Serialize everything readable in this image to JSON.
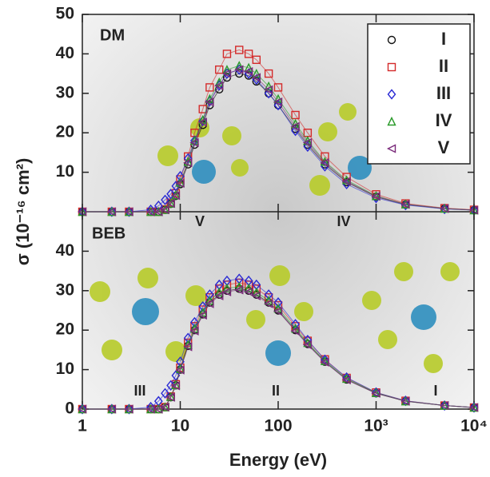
{
  "chart_data": [
    {
      "type": "scatter",
      "title": "DM",
      "ylabel": "σ (10⁻¹⁶ cm²)",
      "log_x": true,
      "legend": "top-right",
      "annotations": [
        "V",
        "IV"
      ],
      "x": [
        1,
        2,
        3,
        5,
        6,
        7,
        8,
        9,
        10,
        12,
        14,
        17,
        20,
        25,
        30,
        40,
        50,
        60,
        80,
        100,
        150,
        200,
        300,
        500,
        1000,
        2000,
        5000,
        10000
      ],
      "xlim": [
        1,
        10000
      ],
      "ylim": [
        0,
        50
      ],
      "yticks": [
        10,
        20,
        30,
        40,
        50
      ],
      "series": [
        {
          "name": "I",
          "color": "#111111",
          "marker": "circle",
          "values": [
            0,
            0,
            0,
            0,
            0,
            0.5,
            2,
            4,
            7,
            12,
            17,
            22,
            27,
            31,
            34,
            35,
            34.5,
            33,
            30,
            27,
            21,
            17,
            12,
            7.5,
            3.8,
            1.8,
            0.8,
            0.4
          ]
        },
        {
          "name": "II",
          "color": "#d42a2a",
          "marker": "square",
          "values": [
            0,
            0,
            0,
            0,
            0,
            0.6,
            2.3,
            4.7,
            8.2,
            14,
            20,
            26,
            31.5,
            36,
            40,
            41,
            40,
            38.5,
            35,
            31.5,
            24.5,
            20,
            14,
            8.8,
            4.4,
            2.1,
            0.9,
            0.5
          ]
        },
        {
          "name": "III",
          "color": "#2a2ad4",
          "marker": "diamond",
          "values": [
            0,
            0,
            0,
            0.5,
            1.5,
            3,
            4.5,
            6.5,
            9,
            13.5,
            18,
            23,
            28,
            32,
            35,
            36,
            35,
            33.5,
            30,
            27,
            20.5,
            16.5,
            11.5,
            7,
            3.5,
            1.7,
            0.7,
            0.4
          ]
        },
        {
          "name": "IV",
          "color": "#2a9a2a",
          "marker": "triangle",
          "values": [
            0,
            0,
            0,
            0,
            0,
            0.5,
            2.1,
            4.2,
            7.4,
            12.7,
            18,
            23.3,
            28.6,
            32.8,
            36,
            37,
            36.5,
            35,
            31.8,
            28.6,
            22.3,
            18,
            12.7,
            8,
            4,
            1.9,
            0.8,
            0.4
          ]
        },
        {
          "name": "V",
          "color": "#7a2a7a",
          "marker": "triangle-left",
          "values": [
            0,
            0,
            0,
            0,
            0,
            0.5,
            2.1,
            4.1,
            7.2,
            12.4,
            17.5,
            22.7,
            27.8,
            31.9,
            35,
            36,
            35.5,
            34,
            30.9,
            27.8,
            21.6,
            17.5,
            12.4,
            7.7,
            3.9,
            1.9,
            0.8,
            0.4
          ]
        }
      ]
    },
    {
      "type": "scatter",
      "title": "BEB",
      "xlabel": "Energy (eV)",
      "log_x": true,
      "annotations": [
        "III",
        "II",
        "I"
      ],
      "x": [
        1,
        2,
        3,
        5,
        6,
        7,
        8,
        9,
        10,
        12,
        14,
        17,
        20,
        25,
        30,
        40,
        50,
        60,
        80,
        100,
        150,
        200,
        300,
        500,
        1000,
        2000,
        5000,
        10000
      ],
      "xlim": [
        1,
        10000
      ],
      "ylim": [
        0,
        50
      ],
      "yticks": [
        0,
        10,
        20,
        30,
        40
      ],
      "xticks": [
        1,
        10,
        100,
        {
          "value": 1000,
          "label": "10³"
        },
        {
          "value": 10000,
          "label": "10⁴"
        }
      ],
      "series": [
        {
          "color": "#111111",
          "marker": "circle",
          "values": [
            0,
            0,
            0,
            0,
            0,
            0.5,
            3,
            6,
            10,
            16,
            20,
            24,
            27,
            29,
            30,
            30.5,
            30,
            29,
            27,
            25,
            20,
            16.5,
            12,
            7.5,
            4,
            2,
            0.9,
            0.4
          ]
        },
        {
          "color": "#d42a2a",
          "marker": "square",
          "values": [
            0,
            0,
            0,
            0,
            0,
            0.5,
            3.2,
            6.3,
            10.5,
            16.8,
            21,
            25.2,
            28.3,
            30.5,
            31.5,
            32,
            31.5,
            30.5,
            28.3,
            26.3,
            21,
            17.3,
            12.6,
            7.9,
            4.2,
            2.1,
            0.9,
            0.4
          ]
        },
        {
          "color": "#2a2ad4",
          "marker": "diamond",
          "values": [
            0,
            0,
            0,
            0.5,
            2,
            4,
            6,
            8.5,
            12,
            18,
            22,
            26,
            29,
            31.5,
            32.5,
            33,
            32.5,
            31.5,
            29,
            27,
            21.5,
            17.5,
            12.5,
            8,
            4.2,
            2.1,
            0.9,
            0.4
          ]
        },
        {
          "color": "#2a9a2a",
          "marker": "triangle",
          "values": [
            0,
            0,
            0,
            0,
            0,
            0.5,
            3.1,
            6.1,
            10.2,
            16.3,
            20.4,
            24.5,
            27.5,
            29.6,
            30.6,
            31,
            30.6,
            29.6,
            27.5,
            25.5,
            20.4,
            16.8,
            12.2,
            7.7,
            4.1,
            2,
            0.9,
            0.4
          ]
        },
        {
          "color": "#7a2a7a",
          "marker": "triangle-left",
          "values": [
            0,
            0,
            0,
            0,
            0,
            0.5,
            3,
            5.9,
            9.9,
            15.8,
            19.8,
            23.8,
            26.7,
            28.7,
            29.7,
            30.2,
            29.7,
            28.7,
            26.7,
            24.8,
            19.8,
            16.3,
            11.9,
            7.4,
            4,
            2,
            0.9,
            0.4
          ]
        }
      ]
    }
  ]
}
